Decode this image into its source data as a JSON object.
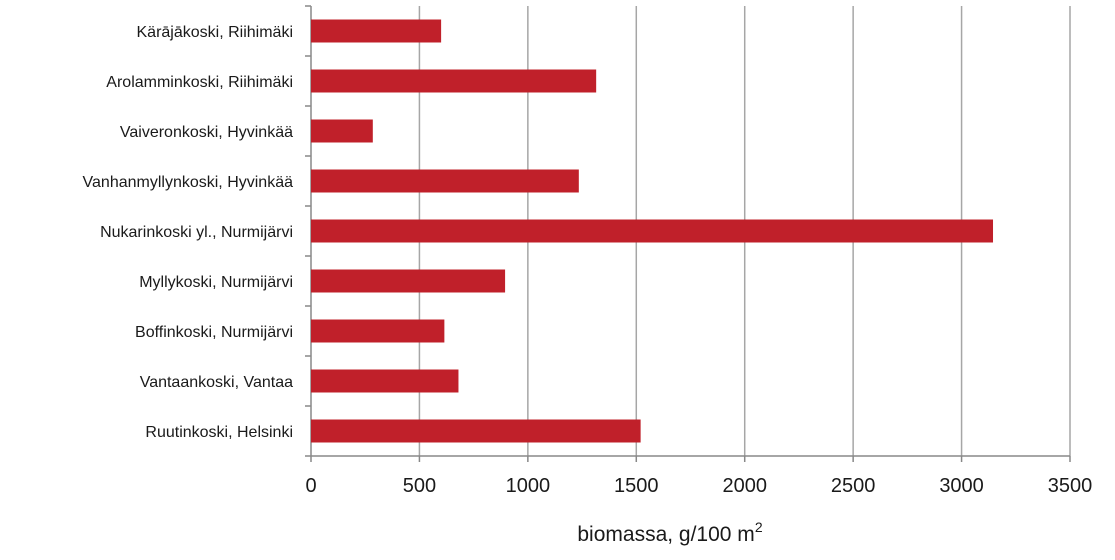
{
  "chart_data": {
    "type": "bar",
    "orientation": "horizontal",
    "categories": [
      "Kärājākoski, Riihimäki",
      "Arolamminkoski, Riihimäki",
      "Vaiveronkoski, Hyvinkää",
      "Vanhanmyllynkoski, Hyvinkää",
      "Nukarinkoski yl., Nurmijärvi",
      "Myllykoski, Nurmijärvi",
      "Boffinkoski, Nurmijärvi",
      "Vantaankoski, Vantaa",
      "Ruutinkoski, Helsinki"
    ],
    "values": [
      600,
      1315,
      285,
      1235,
      3145,
      895,
      615,
      680,
      1520
    ],
    "xticks": [
      "0",
      "500",
      "1000",
      "1500",
      "2000",
      "2500",
      "3000",
      "3500"
    ],
    "xlim": [
      0,
      3500
    ],
    "xlabel": "biomassa, g/100 m",
    "xlabel_sup": "2",
    "bar_color": "#c0202a",
    "grid": "vertical"
  }
}
